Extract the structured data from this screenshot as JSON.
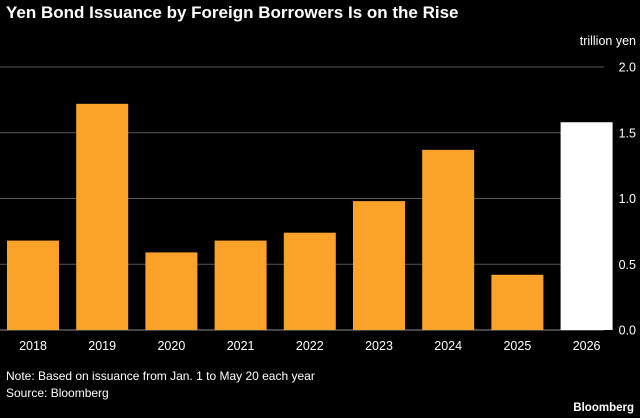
{
  "title": "Yen Bond Issuance by Foreign Borrowers Is on the Rise",
  "note": "Note: Based on issuance from Jan. 1 to May 20 each year",
  "source": "Source: Bloomberg",
  "brand": "Bloomberg",
  "colors": {
    "background": "#000000",
    "bar": "#fba22b",
    "highlight_bar": "#ffffff",
    "grid": "#595959",
    "text": "#ffffff"
  },
  "chart_data": {
    "type": "bar",
    "title": "Yen Bond Issuance by Foreign Borrowers Is on the Rise",
    "ylabel": "trillion yen",
    "xlabel": "",
    "categories": [
      "2018",
      "2019",
      "2020",
      "2021",
      "2022",
      "2023",
      "2024",
      "2025",
      "2026"
    ],
    "values": [
      0.68,
      1.72,
      0.59,
      0.68,
      0.74,
      0.98,
      1.37,
      0.42,
      1.58
    ],
    "highlight": [
      "2026"
    ],
    "ylim": [
      0,
      2.0
    ],
    "yticks": [
      0,
      0.5,
      1.0,
      1.5,
      2.0
    ],
    "ytick_labels": [
      "0.0",
      "0.5",
      "1.0",
      "1.5",
      "2.0"
    ],
    "grid": true,
    "y_axis_side": "right"
  }
}
